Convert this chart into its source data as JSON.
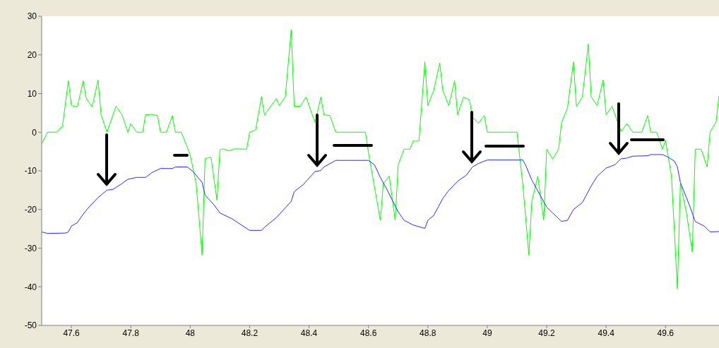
{
  "chart_data": {
    "type": "line",
    "xlim": [
      47.5,
      49.78
    ],
    "xticks": [
      47.6,
      47.8,
      48,
      48.2,
      48.4,
      48.6,
      48.8,
      49,
      49.2,
      49.4,
      49.6
    ],
    "ylim": [
      -50,
      30
    ],
    "yticks": [
      -50,
      -40,
      -30,
      -20,
      -10,
      0,
      10,
      20,
      30
    ],
    "grid": false,
    "marker": "none",
    "series": [
      {
        "color": "#00ff00",
        "x": [
          47.5,
          47.52,
          47.55,
          47.57,
          47.59,
          47.6,
          47.62,
          47.64,
          47.65,
          47.67,
          47.69,
          47.7,
          47.72,
          47.75,
          47.77,
          47.79,
          47.8,
          47.82,
          47.84,
          47.85,
          47.87,
          47.89,
          47.9,
          47.92,
          47.94,
          47.95,
          47.97,
          48.0,
          48.02,
          48.04,
          48.05,
          48.07,
          48.09,
          48.1,
          48.11,
          48.13,
          48.15,
          48.19,
          48.2,
          48.22,
          48.24,
          48.25,
          48.29,
          48.3,
          48.32,
          48.34,
          48.35,
          48.37,
          48.39,
          48.42,
          48.44,
          48.45,
          48.47,
          48.49,
          48.59,
          48.6,
          48.64,
          48.65,
          48.67,
          48.69,
          48.7,
          48.72,
          48.74,
          48.75,
          48.77,
          48.79,
          48.8,
          48.82,
          48.84,
          48.85,
          48.87,
          48.89,
          48.9,
          48.92,
          48.94,
          48.95,
          48.97,
          48.99,
          49.0,
          49.1,
          49.12,
          49.14,
          49.15,
          49.17,
          49.19,
          49.2,
          49.22,
          49.24,
          49.25,
          49.27,
          49.29,
          49.3,
          49.32,
          49.34,
          49.35,
          49.37,
          49.39,
          49.4,
          49.42,
          49.45,
          49.47,
          49.49,
          49.52,
          49.54,
          49.55,
          49.57,
          49.59,
          49.6,
          49.62,
          49.64,
          49.65,
          49.67,
          49.69,
          49.7,
          49.72,
          49.74,
          49.75,
          49.77,
          49.78
        ],
        "values": [
          -2.9,
          0,
          0,
          1.6,
          13.3,
          6.9,
          6.5,
          13.3,
          8.7,
          6.6,
          13.5,
          4.5,
          0,
          6.7,
          4.6,
          0,
          2.2,
          0,
          0,
          4.5,
          4.6,
          4.3,
          0,
          0,
          4.3,
          0,
          0,
          -5.9,
          -13.3,
          -31.8,
          -6.8,
          -6.5,
          -17.6,
          -4.6,
          -4.3,
          -4.8,
          -4.3,
          -4.4,
          0,
          0.5,
          9.2,
          4.5,
          8.7,
          6.9,
          9.1,
          26.5,
          6.7,
          6.7,
          9.1,
          2.5,
          9.1,
          4.5,
          4.3,
          0,
          0,
          -5.3,
          -22.8,
          -13.3,
          -11.4,
          -22.8,
          -8.4,
          -4.4,
          -4.4,
          -2.3,
          -2.3,
          18.2,
          6.9,
          10.9,
          17.9,
          10.9,
          6.9,
          13.3,
          4.5,
          9.1,
          8.4,
          4,
          2.3,
          4.3,
          0,
          0,
          -13.9,
          -31.8,
          -17.9,
          -11.4,
          -22.8,
          -4.4,
          -6.9,
          -4.4,
          2.5,
          6.3,
          18.2,
          6.7,
          9.1,
          22.8,
          9.1,
          6.9,
          13.5,
          4.5,
          6.7,
          0.2,
          2.2,
          0,
          0,
          4.3,
          0,
          0,
          -4.4,
          -2.1,
          -11.4,
          -40.5,
          -13.3,
          -20.6,
          -31,
          -4.4,
          -4.4,
          -9,
          0,
          2.6,
          9.4
        ]
      },
      {
        "color": "#2a2aff",
        "x": [
          47.5,
          47.52,
          47.58,
          47.59,
          47.6,
          47.62,
          47.64,
          47.66,
          47.69,
          47.72,
          47.74,
          47.77,
          47.79,
          47.82,
          47.85,
          47.87,
          47.9,
          47.94,
          47.95,
          47.99,
          48.01,
          48.04,
          48.05,
          48.08,
          48.1,
          48.14,
          48.19,
          48.2,
          48.24,
          48.25,
          48.29,
          48.34,
          48.35,
          48.38,
          48.42,
          48.44,
          48.45,
          48.49,
          48.6,
          48.62,
          48.64,
          48.66,
          48.7,
          48.72,
          48.75,
          48.79,
          48.8,
          48.82,
          48.85,
          48.87,
          48.9,
          48.93,
          48.95,
          48.97,
          49.0,
          49.12,
          49.13,
          49.15,
          49.2,
          49.22,
          49.25,
          49.27,
          49.29,
          49.32,
          49.35,
          49.37,
          49.4,
          49.43,
          49.45,
          49.47,
          49.49,
          49.54,
          49.55,
          49.59,
          49.61,
          49.63,
          49.64,
          49.65,
          49.68,
          49.7,
          49.73,
          49.75,
          49.78
        ],
        "values": [
          -25.8,
          -26.2,
          -26.1,
          -25.8,
          -24.3,
          -23.4,
          -21.2,
          -19.3,
          -16.9,
          -15,
          -14.8,
          -13.3,
          -12.2,
          -11.7,
          -11.7,
          -10.5,
          -9.4,
          -9.4,
          -9,
          -9,
          -10.2,
          -13,
          -16.3,
          -18.8,
          -20.9,
          -22.4,
          -24.9,
          -25.4,
          -25.4,
          -24.6,
          -22.1,
          -17.9,
          -15.4,
          -13.6,
          -10.2,
          -9.9,
          -9,
          -7.3,
          -7.3,
          -8.4,
          -11.7,
          -14.5,
          -20.6,
          -22.8,
          -24,
          -24.9,
          -22.8,
          -21.5,
          -17.2,
          -15.1,
          -12.7,
          -11.1,
          -9,
          -8.1,
          -7.2,
          -7.2,
          -8.7,
          -12.4,
          -19.4,
          -20.9,
          -23.1,
          -22.8,
          -20,
          -18.2,
          -13.9,
          -11.4,
          -9.3,
          -8.4,
          -6.9,
          -6.7,
          -6.2,
          -6.1,
          -5.8,
          -5.8,
          -6.5,
          -7.5,
          -9,
          -13,
          -18.8,
          -23.1,
          -24.3,
          -25.8,
          -25.7
        ]
      }
    ]
  }
}
